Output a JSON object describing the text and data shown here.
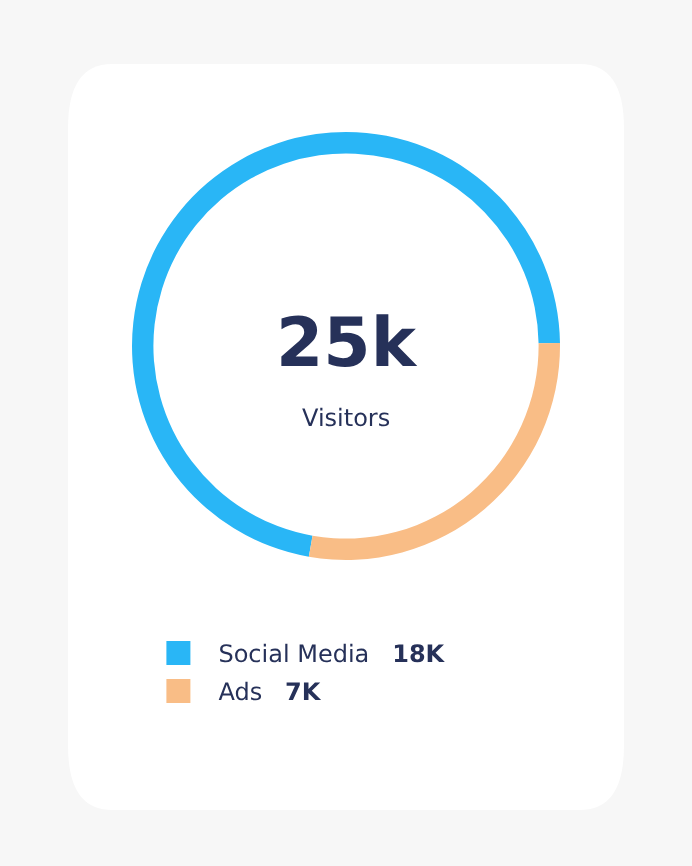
{
  "chart_data": {
    "type": "donut",
    "categories": [
      "Social Media",
      "Ads"
    ],
    "values": [
      18,
      7
    ],
    "value_labels": [
      "18K",
      "7K"
    ],
    "colors": [
      "#29b6f6",
      "#f9bd86"
    ],
    "annotations": [
      "25k",
      "Visitors"
    ],
    "legend": "bottom left"
  }
}
